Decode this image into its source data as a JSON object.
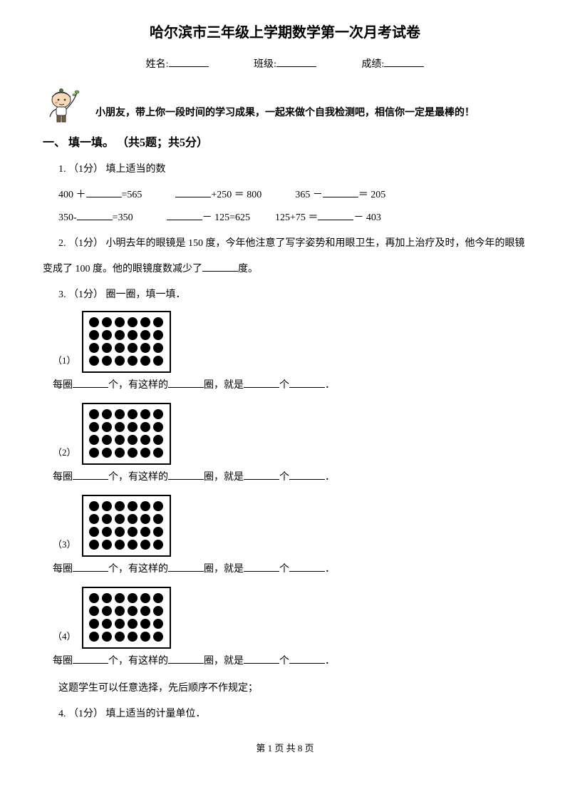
{
  "title": "哈尔滨市三年级上学期数学第一次月考试卷",
  "header": {
    "name_label": "姓名:",
    "class_label": "班级:",
    "score_label": "成绩:"
  },
  "intro": "小朋友，带上你一段时间的学习成果，一起来做个自我检测吧，相信你一定是最棒的！",
  "section1": {
    "head": "一、 填一填。  （共5题；共5分）",
    "q1": {
      "stem": "1.  （1分） 填上适当的数",
      "line1a": "400 ＋",
      "line1b": "=565",
      "line1c": "+250 ＝ 800",
      "line1d": "365 －",
      "line1e": "＝ 205",
      "line2a": "350-",
      "line2b": "=350",
      "line2c": "－ 125=625",
      "line2d": "125+75 ＝",
      "line2e": "－ 403"
    },
    "q2": {
      "text_a": "2.  （1分） 小明去年的眼镜是 150 度，今年他注意了写字姿势和用眼卫生，再加上治疗及时，他今年的眼镜",
      "text_b": "变成了 100 度。他的眼镜度数减少了",
      "text_c": "度。"
    },
    "q3": {
      "stem": "3.  （1分） 圈一圈，填一填．",
      "sub_labels": [
        "（1）",
        "（2）",
        "（3）",
        "（4）"
      ],
      "fill_a": "每圈",
      "fill_b": "个，有这样的",
      "fill_c": "圈，就是",
      "fill_d": "个",
      "fill_e": "．",
      "note": "这题学生可以任意选择，先后顺序不作规定；",
      "dot_rows": 4,
      "dot_cols": 6,
      "dot_color": "#000000",
      "box_border": "#000000"
    },
    "q4": {
      "stem": "4.  （1分） 填上适当的计量单位．"
    }
  },
  "footer": {
    "a": "第 1 页 共 8 页"
  },
  "avatar_colors": {
    "cap": "#3f7a2e",
    "face": "#f7d9b8",
    "shirt": "#ffffff",
    "pants": "#7a5b3a",
    "outline": "#333333",
    "cheek": "#e79b7d",
    "leaf": "#6fb23c"
  }
}
